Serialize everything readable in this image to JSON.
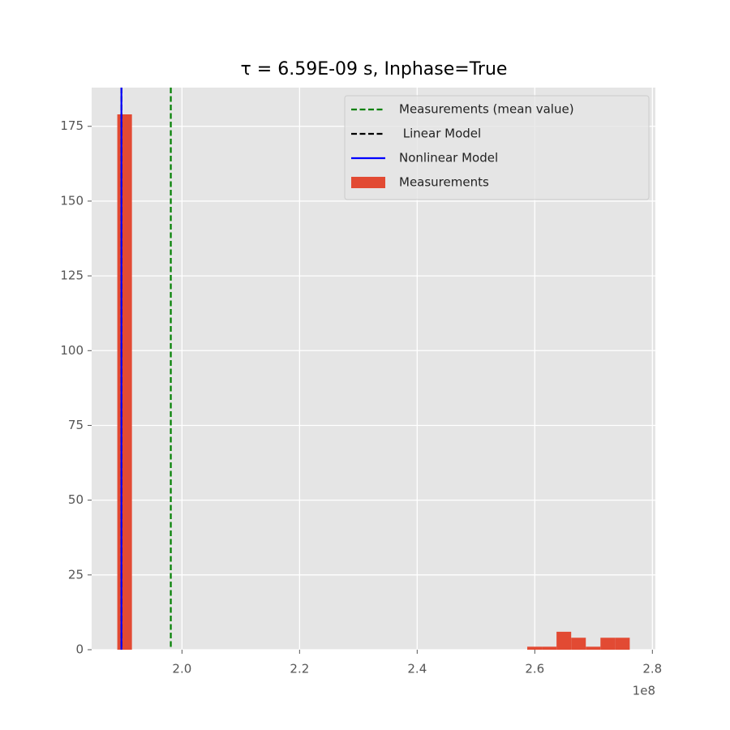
{
  "chart_data": {
    "type": "histogram",
    "title": "τ = 6.59E-09 s, Inphase=True",
    "bins": [
      189000000,
      191490000,
      193980000,
      196470000,
      198960000,
      201450000,
      203940000,
      206430000,
      208920000,
      211410000,
      213900000,
      216390000,
      218880000,
      221370000,
      223860000,
      226350000,
      228840000,
      231330000,
      233820000,
      236310000,
      238800000,
      241290000,
      243780000,
      246270000,
      248760000,
      251250000,
      253740000,
      256230000,
      258720000,
      261210000,
      263700000,
      266190000,
      268680000,
      271170000,
      273660000,
      276150000
    ],
    "series": [
      {
        "name": "Measurements",
        "color": "#e24a33",
        "values": [
          179,
          0,
          0,
          0,
          0,
          0,
          0,
          0,
          0,
          0,
          0,
          0,
          0,
          0,
          0,
          0,
          0,
          0,
          0,
          0,
          0,
          0,
          0,
          0,
          0,
          0,
          0,
          0,
          1,
          1,
          6,
          4,
          1,
          4,
          4
        ]
      }
    ],
    "lines": [
      {
        "name": "Measurements (mean value)",
        "color": "#008000",
        "dash": true,
        "x": 198100000
      },
      {
        "name": " Linear Model",
        "color": "#000000",
        "dash": true,
        "x": 189700000
      },
      {
        "name": "Nonlinear Model",
        "color": "#0000ff",
        "dash": false,
        "x": 189700000
      }
    ],
    "xlim": [
      184640000,
      280510000
    ],
    "xticks": [
      {
        "value": 200000000,
        "label": "2.0"
      },
      {
        "value": 220000000,
        "label": "2.2"
      },
      {
        "value": 240000000,
        "label": "2.4"
      },
      {
        "value": 260000000,
        "label": "2.6"
      },
      {
        "value": 280000000,
        "label": "2.8"
      }
    ],
    "x_offset_label": "1e8",
    "ylim": [
      0,
      187.95
    ],
    "yticks": [
      0,
      25,
      50,
      75,
      100,
      125,
      150,
      175
    ],
    "grid": true,
    "legend": "upper right"
  }
}
